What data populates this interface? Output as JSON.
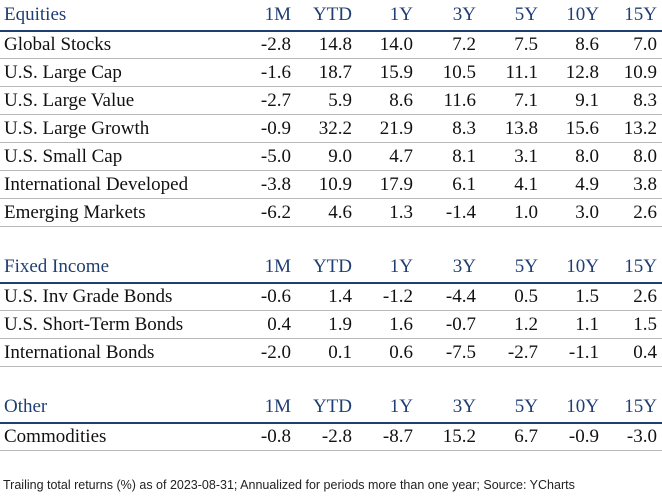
{
  "columns": [
    "1M",
    "YTD",
    "1Y",
    "3Y",
    "5Y",
    "10Y",
    "15Y"
  ],
  "equities": {
    "title": "Equities",
    "rows": [
      {
        "label": "Global Stocks",
        "values": [
          "-2.8",
          "14.8",
          "14.0",
          "7.2",
          "7.5",
          "8.6",
          "7.0"
        ]
      },
      {
        "label": "U.S. Large Cap",
        "values": [
          "-1.6",
          "18.7",
          "15.9",
          "10.5",
          "11.1",
          "12.8",
          "10.9"
        ]
      },
      {
        "label": "U.S. Large Value",
        "values": [
          "-2.7",
          "5.9",
          "8.6",
          "11.6",
          "7.1",
          "9.1",
          "8.3"
        ]
      },
      {
        "label": "U.S. Large Growth",
        "values": [
          "-0.9",
          "32.2",
          "21.9",
          "8.3",
          "13.8",
          "15.6",
          "13.2"
        ]
      },
      {
        "label": "U.S. Small Cap",
        "values": [
          "-5.0",
          "9.0",
          "4.7",
          "8.1",
          "3.1",
          "8.0",
          "8.0"
        ]
      },
      {
        "label": "International Developed",
        "values": [
          "-3.8",
          "10.9",
          "17.9",
          "6.1",
          "4.1",
          "4.9",
          "3.8"
        ]
      },
      {
        "label": "Emerging Markets",
        "values": [
          "-6.2",
          "4.6",
          "1.3",
          "-1.4",
          "1.0",
          "3.0",
          "2.6"
        ]
      }
    ]
  },
  "fixed_income": {
    "title": "Fixed Income",
    "rows": [
      {
        "label": "U.S. Inv Grade Bonds",
        "values": [
          "-0.6",
          "1.4",
          "-1.2",
          "-4.4",
          "0.5",
          "1.5",
          "2.6"
        ]
      },
      {
        "label": "U.S. Short-Term Bonds",
        "values": [
          "0.4",
          "1.9",
          "1.6",
          "-0.7",
          "1.2",
          "1.1",
          "1.5"
        ]
      },
      {
        "label": "International Bonds",
        "values": [
          "-2.0",
          "0.1",
          "0.6",
          "-7.5",
          "-2.7",
          "-1.1",
          "0.4"
        ]
      }
    ]
  },
  "other": {
    "title": "Other",
    "rows": [
      {
        "label": "Commodities",
        "values": [
          "-0.8",
          "-2.8",
          "-8.7",
          "15.2",
          "6.7",
          "-0.9",
          "-3.0"
        ]
      }
    ]
  },
  "footnote": "Trailing total returns (%) as of 2023-08-31; Annualized for periods more than one year; Source: YCharts",
  "colors": {
    "header_text": "#1f3f73",
    "header_rule": "#1f3f73",
    "row_rule": "#b9b9b9"
  }
}
